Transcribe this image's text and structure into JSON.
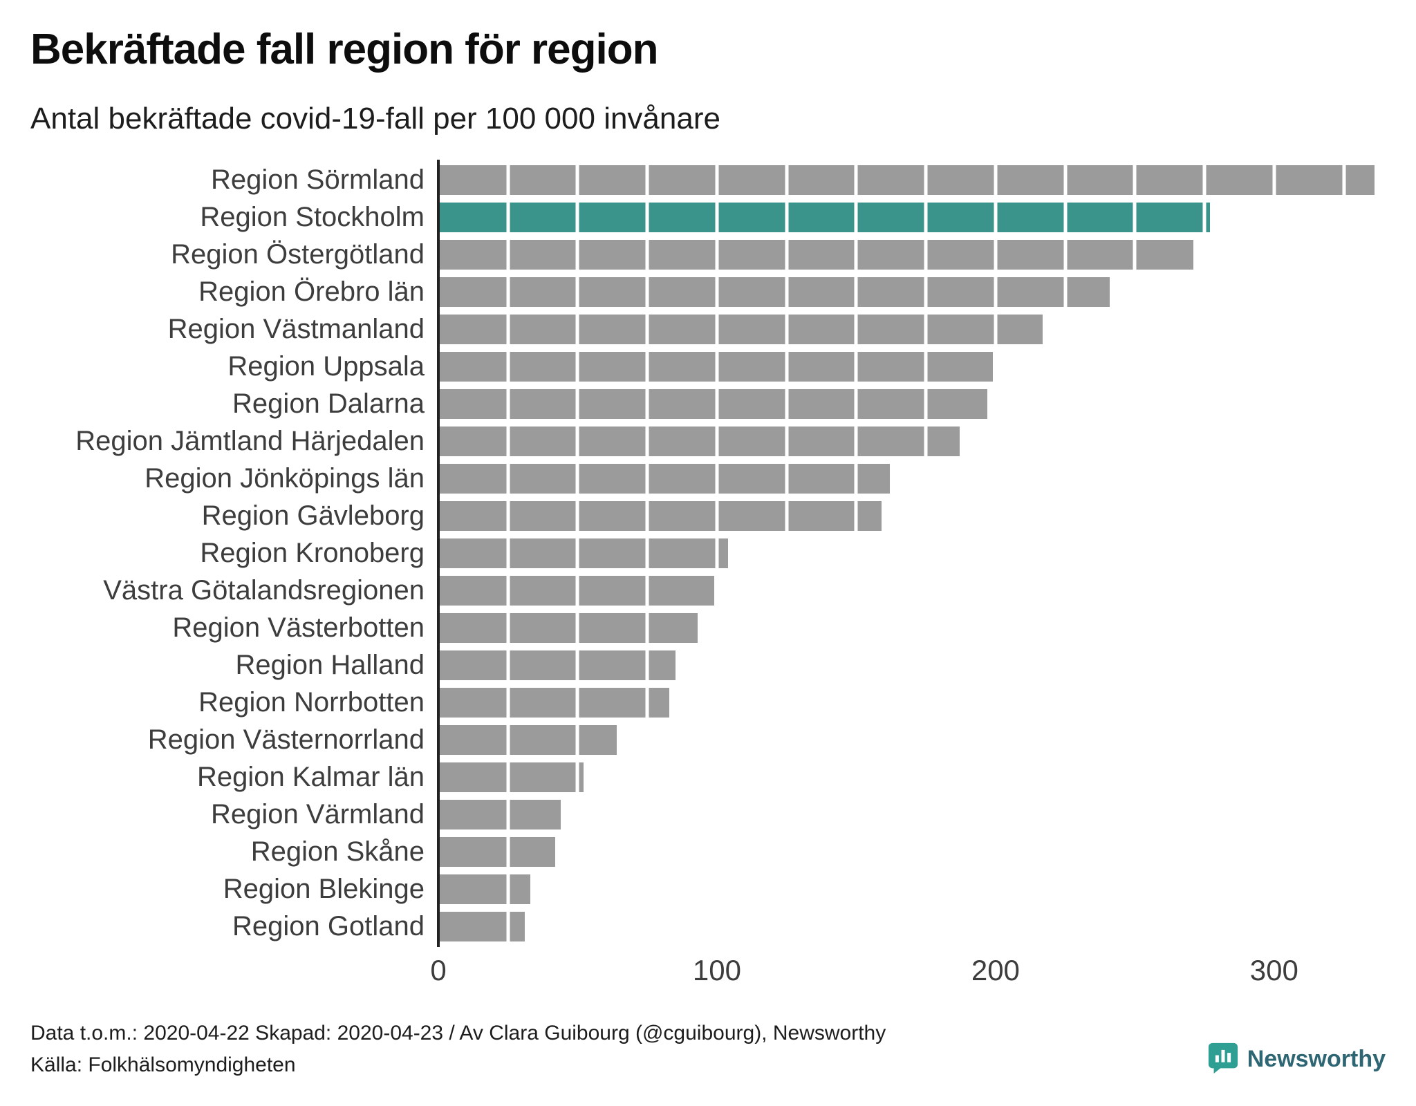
{
  "title": "Bekräftade fall region för region",
  "subtitle": "Antal bekräftade covid-19-fall per 100 000 invånare",
  "footer": {
    "line1": "Data t.o.m.: 2020-04-22 Skapad: 2020-04-23 / Av Clara Guibourg (@cguibourg), Newsworthy",
    "line2": "Källa: Folkhälsomyndigheten",
    "brand": "Newsworthy"
  },
  "colors": {
    "bar": "#9b9b9b",
    "highlight": "#3a948b",
    "axis": "#222222",
    "brand_teal": "#2f9e93",
    "brand_text": "#2f6673"
  },
  "chart_data": {
    "type": "bar",
    "orientation": "horizontal",
    "title": "Bekräftade fall region för region",
    "subtitle": "Antal bekräftade covid-19-fall per 100 000 invånare",
    "categories": [
      "Region Sörmland",
      "Region Stockholm",
      "Region Östergötland",
      "Region Örebro län",
      "Region Västmanland",
      "Region Uppsala",
      "Region Dalarna",
      "Region Jämtland Härjedalen",
      "Region Jönköpings län",
      "Region Gävleborg",
      "Region Kronoberg",
      "Västra Götalandsregionen",
      "Region Västerbotten",
      "Region Halland",
      "Region Norrbotten",
      "Region Västernorrland",
      "Region Kalmar län",
      "Region Värmland",
      "Region Skåne",
      "Region Blekinge",
      "Region Gotland"
    ],
    "values": [
      336,
      277,
      271,
      241,
      217,
      199,
      197,
      187,
      162,
      159,
      104,
      99,
      93,
      85,
      83,
      64,
      52,
      44,
      42,
      33,
      31
    ],
    "highlight_category": "Region Stockholm",
    "xlim": [
      0,
      340
    ],
    "xticks": [
      0,
      100,
      200,
      300
    ],
    "gridline_step": 25,
    "grid": "white-overlay",
    "legend": "none",
    "xlabel": "",
    "ylabel": ""
  }
}
